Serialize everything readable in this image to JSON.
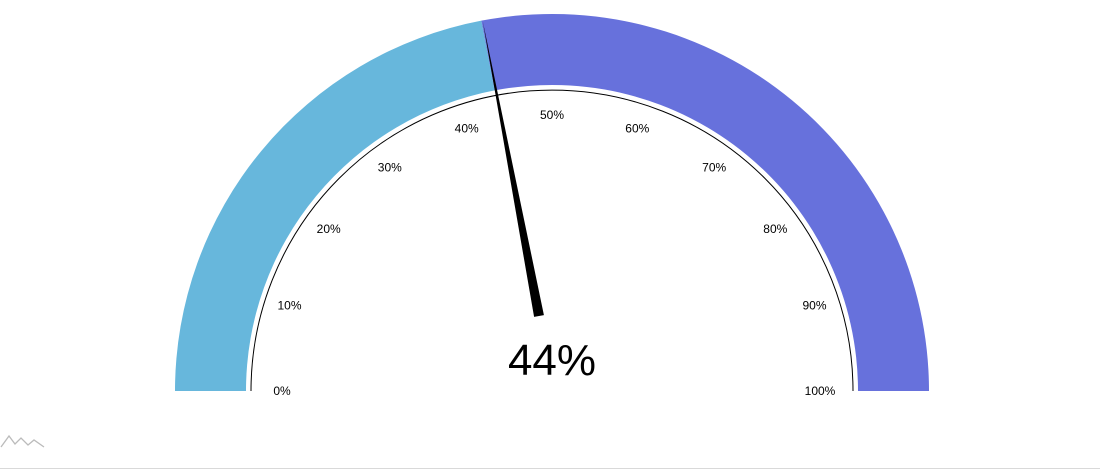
{
  "chart_data": {
    "type": "gauge",
    "min": 0,
    "max": 100,
    "value": 44,
    "value_label": "44%",
    "tick_step": 10,
    "tick_labels": [
      "0%",
      "10%",
      "20%",
      "30%",
      "40%",
      "50%",
      "60%",
      "70%",
      "80%",
      "90%",
      "100%"
    ],
    "bands": [
      {
        "from": 0,
        "to": 44,
        "color": "#67b7dc"
      },
      {
        "from": 44,
        "to": 100,
        "color": "#6771dc"
      }
    ],
    "axis_color": "#000000",
    "needle_color": "#000000"
  },
  "watermark": {
    "icon": "amcharts-logo-icon",
    "color": "#bbbbbb"
  }
}
